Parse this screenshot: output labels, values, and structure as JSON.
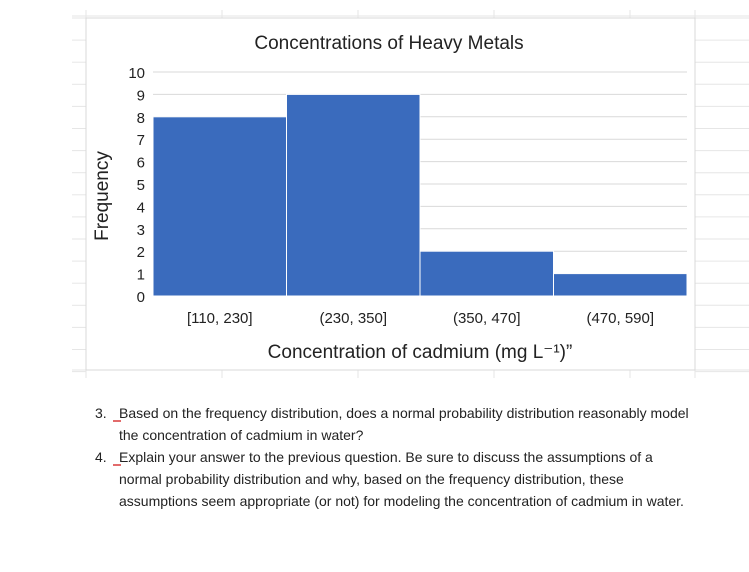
{
  "colors": {
    "bar": "#3a6bbd",
    "bar_border": "#ffffff",
    "grid": "#d9d9d9",
    "text": "#222222",
    "annotation_mark": "#e26b6b"
  },
  "chart_data": {
    "type": "bar",
    "title": "Concentrations of Heavy Metals",
    "xlabel": "Concentration of cadmium (mg L⁻¹)”",
    "ylabel": "Frequency",
    "categories": [
      "[110, 230]",
      "(230, 350]",
      "(350, 470]",
      "(470, 590]"
    ],
    "values": [
      8,
      9,
      2,
      1
    ],
    "ylim": [
      0,
      10
    ],
    "yticks": [
      "0",
      "1",
      "2",
      "3",
      "4",
      "5",
      "6",
      "7",
      "8",
      "9",
      "10"
    ],
    "grid": true,
    "legend": "none"
  },
  "questions": [
    {
      "number": "3.",
      "text": "Based on the frequency distribution, does a normal probability distribution reasonably model the concentration of cadmium in water?"
    },
    {
      "number": "4.",
      "text": "Explain your answer to the previous question. Be sure to discuss the assumptions of a normal probability distribution and why, based on the frequency distribution, these assumptions seem appropriate (or not) for modeling the concentration of cadmium in water."
    }
  ]
}
